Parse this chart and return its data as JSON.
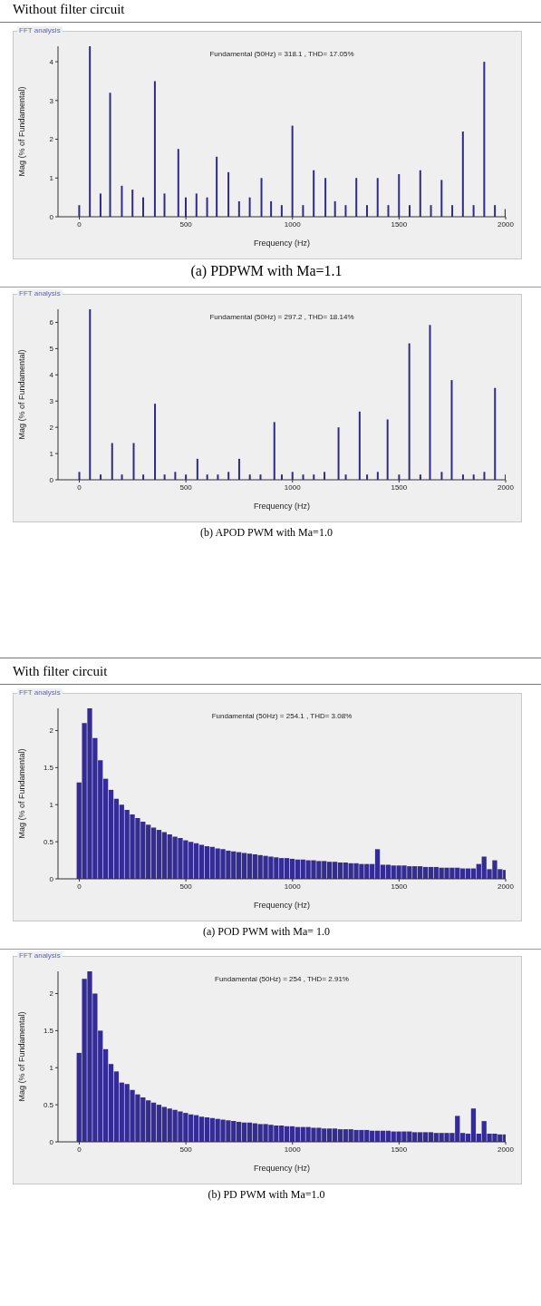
{
  "chart_data": [
    {
      "type": "bar",
      "title": "Fundamental (50Hz) = 318.1 , THD= 17.05%",
      "xlabel": "Frequency (Hz)",
      "ylabel": "Mag (% of Fundamental)",
      "annotations": [
        "FFT analysis",
        "(a) PDPWM with Ma=1.1",
        "Without filter circuit"
      ],
      "color": "#2f2a8a",
      "xlim": [
        -100,
        2000
      ],
      "xticks": [
        0,
        500,
        1000,
        1500,
        2000
      ],
      "ylim": [
        0,
        4.4
      ],
      "yticks": [
        0,
        1,
        2,
        3,
        4
      ],
      "x": [
        0,
        50,
        100,
        145,
        200,
        250,
        300,
        355,
        400,
        465,
        500,
        550,
        600,
        645,
        700,
        750,
        800,
        855,
        900,
        950,
        1000,
        1050,
        1100,
        1155,
        1200,
        1250,
        1300,
        1350,
        1400,
        1450,
        1500,
        1550,
        1600,
        1650,
        1700,
        1750,
        1800,
        1850,
        1900,
        1950,
        2000
      ],
      "values": [
        0.3,
        4.4,
        0.6,
        3.2,
        0.8,
        0.7,
        0.5,
        3.5,
        0.6,
        1.75,
        0.5,
        0.6,
        0.5,
        1.55,
        1.15,
        0.4,
        0.5,
        1.0,
        0.4,
        0.3,
        2.35,
        0.3,
        1.2,
        1.0,
        0.4,
        0.3,
        1.0,
        0.3,
        1.0,
        0.3,
        1.1,
        0.3,
        1.2,
        0.3,
        0.95,
        0.3,
        2.2,
        0.3,
        4.0,
        0.3,
        0.2
      ]
    },
    {
      "type": "bar",
      "title": "Fundamental (50Hz) = 297.2 , THD= 18.14%",
      "xlabel": "Frequency (Hz)",
      "ylabel": "Mag (% of Fundamental)",
      "annotations": [
        "FFT analysis",
        "(b) APOD PWM with Ma=1.0"
      ],
      "color": "#2f2a8a",
      "xlim": [
        -100,
        2000
      ],
      "xticks": [
        0,
        500,
        1000,
        1500,
        2000
      ],
      "ylim": [
        0,
        6.5
      ],
      "yticks": [
        0,
        1,
        2,
        3,
        4,
        5,
        6
      ],
      "x": [
        0,
        50,
        100,
        154,
        200,
        255,
        300,
        355,
        400,
        450,
        500,
        554,
        600,
        650,
        700,
        750,
        800,
        850,
        915,
        950,
        1000,
        1050,
        1100,
        1150,
        1216,
        1250,
        1315,
        1350,
        1400,
        1446,
        1500,
        1548,
        1600,
        1645,
        1700,
        1747,
        1800,
        1850,
        1900,
        1950,
        2000
      ],
      "values": [
        0.3,
        6.5,
        0.2,
        1.4,
        0.2,
        1.4,
        0.2,
        2.9,
        0.2,
        0.3,
        0.2,
        0.8,
        0.2,
        0.2,
        0.3,
        0.8,
        0.2,
        0.2,
        2.2,
        0.2,
        0.3,
        0.2,
        0.2,
        0.3,
        2.0,
        0.2,
        2.6,
        0.2,
        0.3,
        2.3,
        0.2,
        5.2,
        0.2,
        5.9,
        0.3,
        3.8,
        0.2,
        0.2,
        0.3,
        3.5,
        0.2
      ]
    },
    {
      "type": "bar",
      "title": "Fundamental (50Hz) = 254.1 , THD= 3.08%",
      "xlabel": "Frequency (Hz)",
      "ylabel": "Mag (% of Fundamental)",
      "annotations": [
        "FFT analysis",
        "(a)    POD PWM with Ma= 1.0",
        "With filter circuit"
      ],
      "color": "#342c94",
      "xlim": [
        -100,
        2000
      ],
      "xticks": [
        0,
        500,
        1000,
        1500,
        2000
      ],
      "ylim": [
        0,
        2.3
      ],
      "yticks": [
        0,
        0.5,
        1,
        1.5,
        2
      ],
      "x": [
        0,
        25,
        50,
        75,
        100,
        125,
        150,
        175,
        200,
        225,
        250,
        275,
        300,
        325,
        350,
        375,
        400,
        425,
        450,
        475,
        500,
        525,
        550,
        575,
        600,
        625,
        650,
        675,
        700,
        725,
        750,
        775,
        800,
        825,
        850,
        875,
        900,
        925,
        950,
        975,
        1000,
        1025,
        1050,
        1075,
        1100,
        1125,
        1150,
        1175,
        1200,
        1225,
        1250,
        1275,
        1300,
        1325,
        1350,
        1375,
        1400,
        1425,
        1450,
        1475,
        1500,
        1525,
        1550,
        1575,
        1600,
        1625,
        1650,
        1675,
        1700,
        1725,
        1750,
        1775,
        1800,
        1825,
        1850,
        1875,
        1900,
        1925,
        1950,
        1975,
        2000
      ],
      "values": [
        1.3,
        2.1,
        2.3,
        1.9,
        1.6,
        1.35,
        1.2,
        1.08,
        1.0,
        0.93,
        0.87,
        0.82,
        0.77,
        0.73,
        0.69,
        0.66,
        0.63,
        0.6,
        0.57,
        0.55,
        0.52,
        0.5,
        0.48,
        0.46,
        0.44,
        0.43,
        0.41,
        0.4,
        0.38,
        0.37,
        0.36,
        0.35,
        0.34,
        0.33,
        0.32,
        0.31,
        0.3,
        0.29,
        0.28,
        0.28,
        0.27,
        0.26,
        0.26,
        0.25,
        0.25,
        0.24,
        0.24,
        0.23,
        0.23,
        0.22,
        0.22,
        0.21,
        0.21,
        0.2,
        0.2,
        0.2,
        0.4,
        0.19,
        0.19,
        0.18,
        0.18,
        0.18,
        0.17,
        0.17,
        0.17,
        0.16,
        0.16,
        0.16,
        0.15,
        0.15,
        0.15,
        0.15,
        0.14,
        0.14,
        0.14,
        0.2,
        0.3,
        0.13,
        0.25,
        0.13,
        0.12
      ]
    },
    {
      "type": "bar",
      "title": "Fundamental (50Hz) = 254 , THD= 2.91%",
      "xlabel": "Frequency (Hz)",
      "ylabel": "Mag (% of Fundamental)",
      "annotations": [
        "FFT analysis",
        "(b) PD PWM with Ma=1.0"
      ],
      "color": "#342c94",
      "xlim": [
        -100,
        2000
      ],
      "xticks": [
        0,
        500,
        1000,
        1500,
        2000
      ],
      "ylim": [
        0,
        2.3
      ],
      "yticks": [
        0,
        0.5,
        1,
        1.5,
        2
      ],
      "x": [
        0,
        25,
        50,
        75,
        100,
        125,
        150,
        175,
        200,
        225,
        250,
        275,
        300,
        325,
        350,
        375,
        400,
        425,
        450,
        475,
        500,
        525,
        550,
        575,
        600,
        625,
        650,
        675,
        700,
        725,
        750,
        775,
        800,
        825,
        850,
        875,
        900,
        925,
        950,
        975,
        1000,
        1025,
        1050,
        1075,
        1100,
        1125,
        1150,
        1175,
        1200,
        1225,
        1250,
        1275,
        1300,
        1325,
        1350,
        1375,
        1400,
        1425,
        1450,
        1475,
        1500,
        1525,
        1550,
        1575,
        1600,
        1625,
        1650,
        1675,
        1700,
        1725,
        1750,
        1775,
        1800,
        1825,
        1850,
        1875,
        1900,
        1925,
        1950,
        1975,
        2000
      ],
      "values": [
        1.2,
        2.2,
        2.3,
        2.0,
        1.5,
        1.25,
        1.05,
        0.95,
        0.8,
        0.78,
        0.7,
        0.64,
        0.6,
        0.56,
        0.53,
        0.5,
        0.47,
        0.45,
        0.43,
        0.41,
        0.39,
        0.37,
        0.36,
        0.34,
        0.33,
        0.32,
        0.31,
        0.3,
        0.29,
        0.28,
        0.27,
        0.26,
        0.26,
        0.25,
        0.24,
        0.24,
        0.23,
        0.22,
        0.22,
        0.21,
        0.21,
        0.2,
        0.2,
        0.2,
        0.19,
        0.19,
        0.18,
        0.18,
        0.18,
        0.17,
        0.17,
        0.17,
        0.16,
        0.16,
        0.16,
        0.15,
        0.15,
        0.15,
        0.15,
        0.14,
        0.14,
        0.14,
        0.14,
        0.13,
        0.13,
        0.13,
        0.13,
        0.12,
        0.12,
        0.12,
        0.12,
        0.35,
        0.12,
        0.11,
        0.45,
        0.11,
        0.28,
        0.11,
        0.11,
        0.1,
        0.1
      ]
    }
  ]
}
